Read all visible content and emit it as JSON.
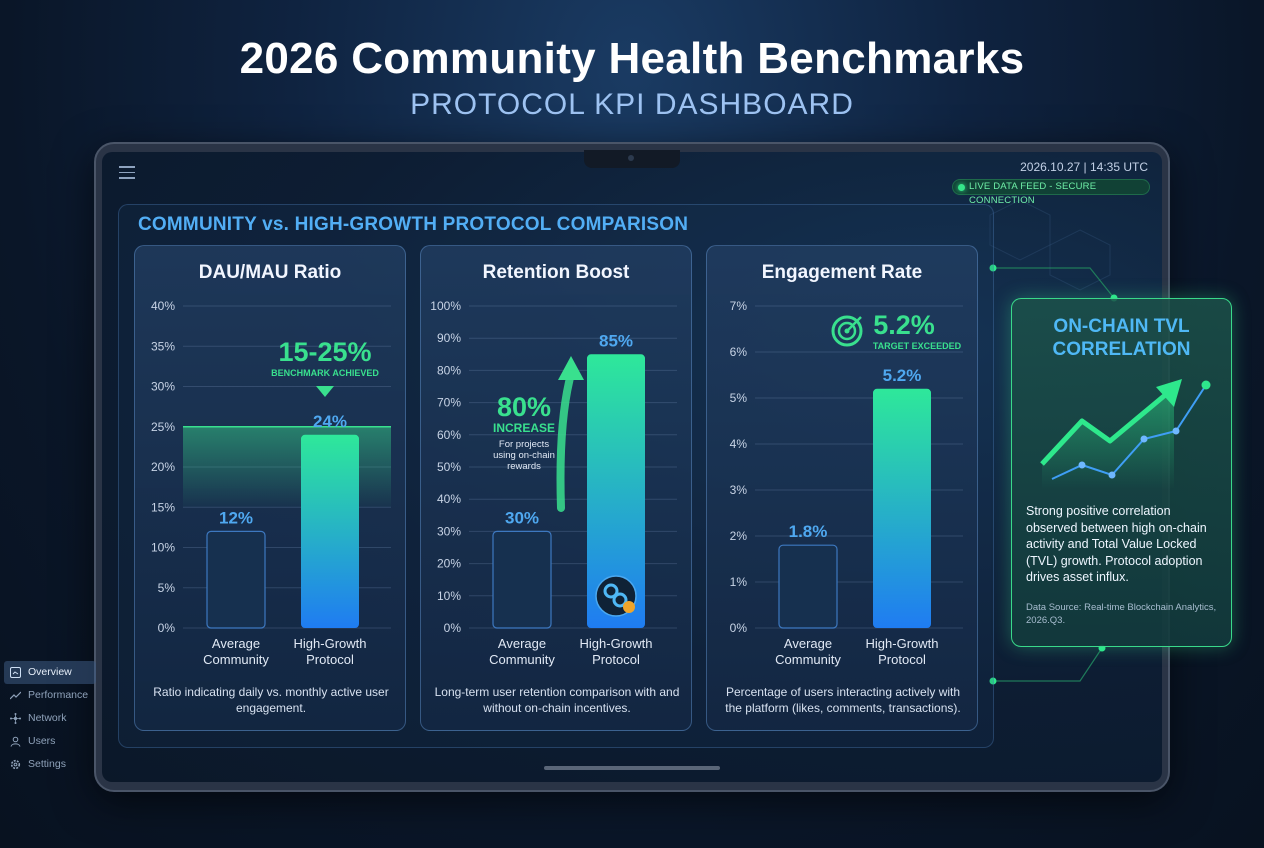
{
  "header": {
    "title": "2026 Community Health Benchmarks",
    "subtitle": "PROTOCOL KPI DASHBOARD"
  },
  "status": {
    "timestamp": "2026.10.27 | 14:35 UTC",
    "live_feed": "LIVE DATA FEED - SECURE CONNECTION"
  },
  "section_title": "COMMUNITY vs. HIGH-GROWTH PROTOCOL COMPARISON",
  "colors": {
    "accent_blue": "#52aef5",
    "accent_green": "#39e08e",
    "bar_average": "#16304f",
    "bar_growth_top": "#2ee89a",
    "bar_growth_bottom": "#1f7cf2"
  },
  "chart_data": [
    {
      "type": "bar",
      "title": "DAU/MAU Ratio",
      "categories": [
        "Average Community",
        "High-Growth Protocol"
      ],
      "values": [
        12,
        24
      ],
      "value_labels": [
        "12%",
        "24%"
      ],
      "ylim": [
        0,
        40
      ],
      "yticks": [
        "0%",
        "5%",
        "10%",
        "15%",
        "20%",
        "25%",
        "30%",
        "35%",
        "40%"
      ],
      "benchmark_band": [
        15,
        25
      ],
      "callout": {
        "value": "15-25%",
        "label": "BENCHMARK ACHIEVED"
      },
      "description": "Ratio indicating daily vs. monthly active user engagement."
    },
    {
      "type": "bar",
      "title": "Retention Boost",
      "categories": [
        "Average Community",
        "High-Growth Protocol"
      ],
      "values": [
        30,
        85
      ],
      "value_labels": [
        "30%",
        "85%"
      ],
      "ylim": [
        0,
        100
      ],
      "yticks": [
        "0%",
        "10%",
        "20%",
        "30%",
        "40%",
        "50%",
        "60%",
        "70%",
        "80%",
        "90%",
        "100%"
      ],
      "callout": {
        "value": "80%",
        "label": "INCREASE",
        "note": "For projects using on-chain rewards"
      },
      "description": "Long-term user retention comparison with and without on-chain incentives."
    },
    {
      "type": "bar",
      "title": "Engagement Rate",
      "categories": [
        "Average Community",
        "High-Growth Protocol"
      ],
      "values": [
        1.8,
        5.2
      ],
      "value_labels": [
        "1.8%",
        "5.2%"
      ],
      "ylim": [
        0,
        7
      ],
      "yticks": [
        "0%",
        "1%",
        "2%",
        "3%",
        "4%",
        "5%",
        "6%",
        "7%"
      ],
      "callout": {
        "value": "5.2%",
        "label": "TARGET EXCEEDED"
      },
      "description": "Percentage of users interacting actively with the platform (likes, comments, transactions)."
    }
  ],
  "tvl": {
    "title": "ON-CHAIN TVL CORRELATION",
    "description": "Strong positive correlation observed between high on-chain activity and Total Value Locked (TVL) growth. Protocol adoption drives asset influx.",
    "source": "Data Source: Real-time Blockchain Analytics, 2026.Q3."
  },
  "nav": {
    "items": [
      {
        "label": "Overview",
        "icon": "overview-icon"
      },
      {
        "label": "Performance",
        "icon": "performance-icon"
      },
      {
        "label": "Network",
        "icon": "network-icon"
      },
      {
        "label": "Users",
        "icon": "users-icon"
      },
      {
        "label": "Settings",
        "icon": "settings-icon"
      }
    ]
  }
}
